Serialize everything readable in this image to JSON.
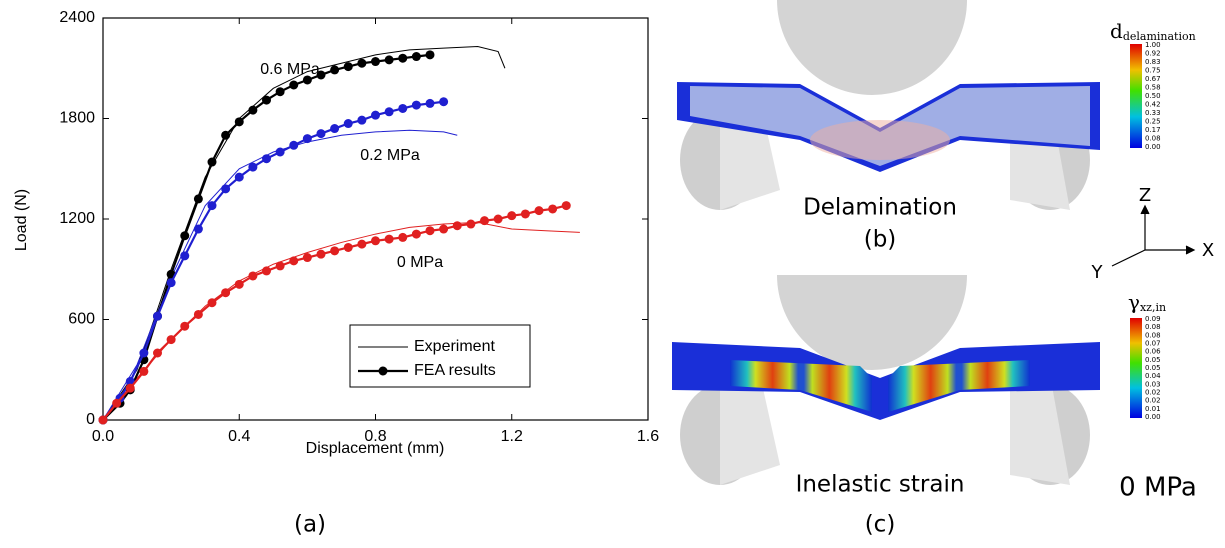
{
  "chart_data": {
    "type": "line",
    "xlabel": "Displacement (mm)",
    "ylabel": "Load (N)",
    "xlim": [
      0,
      1.6
    ],
    "xticks": [
      {
        "value": 0,
        "label": "0.0"
      },
      0.4,
      0.8,
      1.2,
      1.6
    ],
    "ylim": [
      0,
      2400
    ],
    "yticks": [
      0,
      600,
      1200,
      1800,
      2400
    ],
    "legend": [
      {
        "label": "Experiment",
        "style": "experiment"
      },
      {
        "label": "FEA results",
        "style": "fea"
      }
    ],
    "annotations": [
      {
        "text": "0.6 MPa",
        "color": "#000000"
      },
      {
        "text": "0.2 MPa",
        "color": "#1f1fd0"
      },
      {
        "text": "0 MPa",
        "color": "#e02020"
      }
    ],
    "series": [
      {
        "style": "experiment",
        "color": "#000000",
        "x": [
          0,
          0.1,
          0.2,
          0.3,
          0.4,
          0.5,
          0.6,
          0.7,
          0.8,
          0.9,
          1.0,
          1.1,
          1.16,
          1.18
        ],
        "values": [
          0,
          300,
          900,
          1450,
          1800,
          1980,
          2080,
          2130,
          2180,
          2210,
          2220,
          2230,
          2200,
          2100
        ]
      },
      {
        "style": "experiment",
        "color": "#1f1fd0",
        "x": [
          0,
          0.1,
          0.2,
          0.3,
          0.4,
          0.5,
          0.6,
          0.7,
          0.8,
          0.9,
          1.0,
          1.04
        ],
        "values": [
          0,
          330,
          850,
          1280,
          1500,
          1600,
          1660,
          1700,
          1720,
          1730,
          1720,
          1700
        ]
      },
      {
        "style": "experiment",
        "color": "#e02020",
        "x": [
          0,
          0.1,
          0.2,
          0.3,
          0.4,
          0.5,
          0.6,
          0.7,
          0.8,
          0.9,
          1.0,
          1.1,
          1.2,
          1.3,
          1.4
        ],
        "values": [
          0,
          250,
          480,
          680,
          830,
          930,
          1000,
          1060,
          1110,
          1150,
          1170,
          1180,
          1140,
          1130,
          1120
        ]
      },
      {
        "style": "fea",
        "color": "#000000",
        "x": [
          0,
          0.05,
          0.08,
          0.12,
          0.16,
          0.2,
          0.24,
          0.28,
          0.32,
          0.36,
          0.4,
          0.44,
          0.48,
          0.52,
          0.56,
          0.6,
          0.64,
          0.68,
          0.72,
          0.76,
          0.8,
          0.84,
          0.88,
          0.92,
          0.96
        ],
        "values": [
          0,
          100,
          180,
          360,
          620,
          870,
          1100,
          1320,
          1540,
          1700,
          1780,
          1850,
          1910,
          1960,
          2000,
          2030,
          2060,
          2090,
          2110,
          2130,
          2140,
          2150,
          2160,
          2170,
          2180
        ]
      },
      {
        "style": "fea",
        "color": "#1f1fd0",
        "x": [
          0,
          0.05,
          0.08,
          0.12,
          0.16,
          0.2,
          0.24,
          0.28,
          0.32,
          0.36,
          0.4,
          0.44,
          0.48,
          0.52,
          0.56,
          0.6,
          0.64,
          0.68,
          0.72,
          0.76,
          0.8,
          0.84,
          0.88,
          0.92,
          0.96,
          1.0
        ],
        "values": [
          0,
          130,
          230,
          400,
          620,
          820,
          980,
          1140,
          1280,
          1380,
          1450,
          1510,
          1560,
          1600,
          1640,
          1680,
          1710,
          1740,
          1770,
          1790,
          1820,
          1840,
          1860,
          1880,
          1890,
          1900
        ]
      },
      {
        "style": "fea",
        "color": "#e02020",
        "x": [
          0,
          0.04,
          0.08,
          0.12,
          0.16,
          0.2,
          0.24,
          0.28,
          0.32,
          0.36,
          0.4,
          0.44,
          0.48,
          0.52,
          0.56,
          0.6,
          0.64,
          0.68,
          0.72,
          0.76,
          0.8,
          0.84,
          0.88,
          0.92,
          0.96,
          1.0,
          1.04,
          1.08,
          1.12,
          1.16,
          1.2,
          1.24,
          1.28,
          1.32,
          1.36
        ],
        "values": [
          0,
          100,
          190,
          290,
          400,
          480,
          560,
          630,
          700,
          760,
          810,
          860,
          890,
          920,
          950,
          970,
          990,
          1010,
          1030,
          1050,
          1070,
          1080,
          1090,
          1110,
          1130,
          1140,
          1160,
          1170,
          1190,
          1200,
          1220,
          1230,
          1250,
          1260,
          1280
        ]
      }
    ]
  },
  "panel_a": {
    "label": "(a)"
  },
  "panel_b": {
    "caption": "Delamination",
    "label": "(b)",
    "colorbar": {
      "symbol": "d",
      "subscript": "delamination",
      "ticks": [
        "1.00",
        "0.92",
        "0.83",
        "0.75",
        "0.67",
        "0.58",
        "0.50",
        "0.42",
        "0.33",
        "0.25",
        "0.17",
        "0.08",
        "0.00"
      ]
    }
  },
  "axes_triad": {
    "z": "Z",
    "x": "X",
    "y": "Y"
  },
  "panel_c": {
    "caption": "Inelastic strain",
    "label": "(c)",
    "pressure": "0 MPa",
    "colorbar": {
      "symbol": "γ",
      "subscript": "xz,in",
      "ticks": [
        "0.09",
        "0.08",
        "0.08",
        "0.07",
        "0.06",
        "0.05",
        "0.05",
        "0.04",
        "0.03",
        "0.02",
        "0.02",
        "0.01",
        "0.00"
      ]
    }
  }
}
